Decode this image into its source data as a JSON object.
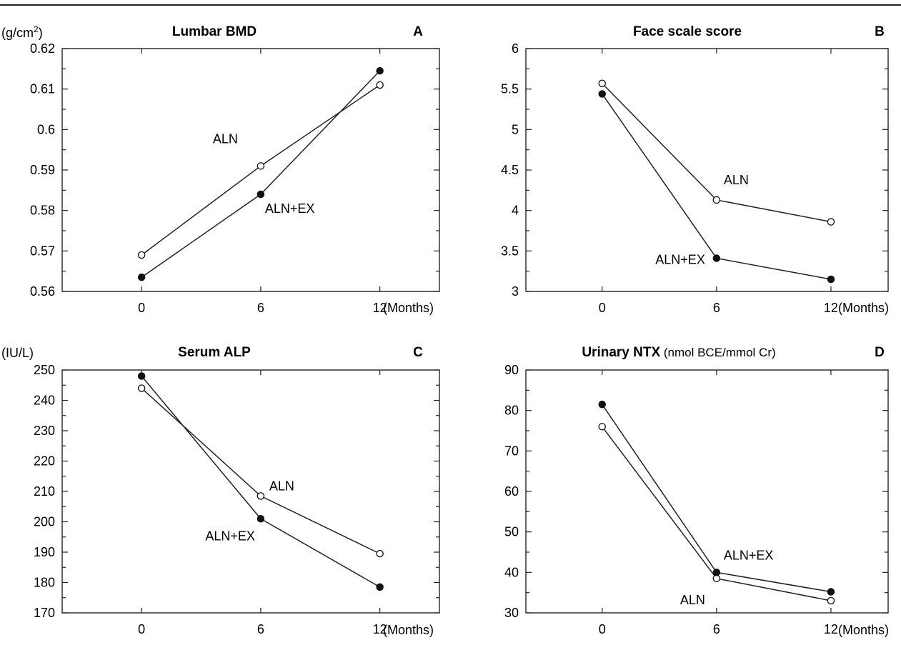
{
  "figure": {
    "panels": [
      {
        "id": "A",
        "letter": "A",
        "title": "Lumbar BMD",
        "title_suffix": "",
        "unit_label": "(g/cm",
        "unit_sup": "2",
        "unit_close": ")",
        "x_unit": "(Months)"
      },
      {
        "id": "B",
        "letter": "B",
        "title": "Face scale score",
        "title_suffix": "",
        "unit_label": "",
        "unit_sup": "",
        "unit_close": "",
        "x_unit": "(Months)"
      },
      {
        "id": "C",
        "letter": "C",
        "title": "Serum ALP",
        "title_suffix": "",
        "unit_label": "(IU/L)",
        "unit_sup": "",
        "unit_close": "",
        "x_unit": "(Months)"
      },
      {
        "id": "D",
        "letter": "D",
        "title": "Urinary NTX",
        "title_suffix": " (nmol BCE/mmol Cr)",
        "unit_label": "",
        "unit_sup": "",
        "unit_close": "",
        "x_unit": "(Months)"
      }
    ]
  },
  "chart_data": [
    {
      "type": "line",
      "title": "Lumbar BMD",
      "ylabel": "g/cm2",
      "xlabel": "(Months)",
      "x": [
        0,
        6,
        12
      ],
      "xlim": [
        -4,
        15
      ],
      "ylim": [
        0.56,
        0.62
      ],
      "yticks": [
        "0.56",
        "0.57",
        "0.58",
        "0.59",
        "0.6",
        "0.61",
        "0.62"
      ],
      "xticks": [
        "0",
        "6",
        "12"
      ],
      "series": [
        {
          "name": "ALN",
          "marker": "open",
          "values": [
            0.569,
            0.591,
            0.611
          ]
        },
        {
          "name": "ALN+EX",
          "marker": "filled",
          "values": [
            0.5635,
            0.584,
            0.6145
          ]
        }
      ],
      "annotations": [
        {
          "text": "ALN",
          "series": "ALN"
        },
        {
          "text": "ALN+EX",
          "series": "ALN+EX"
        }
      ]
    },
    {
      "type": "line",
      "title": "Face scale score",
      "xlabel": "(Months)",
      "x": [
        0,
        6,
        12
      ],
      "xlim": [
        -4,
        15
      ],
      "ylim": [
        3,
        6
      ],
      "yticks": [
        "3",
        "3.5",
        "4",
        "4.5",
        "5",
        "5.5",
        "6"
      ],
      "xticks": [
        "0",
        "6",
        "12"
      ],
      "series": [
        {
          "name": "ALN",
          "marker": "open",
          "values": [
            5.57,
            4.13,
            3.86
          ]
        },
        {
          "name": "ALN+EX",
          "marker": "filled",
          "values": [
            5.44,
            3.41,
            3.15
          ]
        }
      ],
      "annotations": [
        {
          "text": "ALN",
          "series": "ALN"
        },
        {
          "text": "ALN+EX",
          "series": "ALN+EX"
        }
      ]
    },
    {
      "type": "line",
      "title": "Serum ALP",
      "ylabel": "IU/L",
      "xlabel": "(Months)",
      "x": [
        0,
        6,
        12
      ],
      "xlim": [
        -4,
        15
      ],
      "ylim": [
        170,
        250
      ],
      "yticks": [
        "170",
        "180",
        "190",
        "200",
        "210",
        "220",
        "230",
        "240",
        "250"
      ],
      "xticks": [
        "0",
        "6",
        "12"
      ],
      "series": [
        {
          "name": "ALN",
          "marker": "open",
          "values": [
            244,
            208.5,
            189.5
          ]
        },
        {
          "name": "ALN+EX",
          "marker": "filled",
          "values": [
            248,
            201,
            178.5
          ]
        }
      ],
      "annotations": [
        {
          "text": "ALN",
          "series": "ALN"
        },
        {
          "text": "ALN+EX",
          "series": "ALN+EX"
        }
      ]
    },
    {
      "type": "line",
      "title": "Urinary NTX",
      "ylabel": "nmol BCE/mmol Cr",
      "xlabel": "(Months)",
      "x": [
        0,
        6,
        12
      ],
      "xlim": [
        -4,
        15
      ],
      "ylim": [
        30,
        90
      ],
      "yticks": [
        "30",
        "40",
        "50",
        "60",
        "70",
        "80",
        "90"
      ],
      "xticks": [
        "0",
        "6",
        "12"
      ],
      "series": [
        {
          "name": "ALN",
          "marker": "open",
          "values": [
            76,
            38.5,
            33
          ]
        },
        {
          "name": "ALN+EX",
          "marker": "filled",
          "values": [
            81.5,
            40,
            35.2
          ]
        }
      ],
      "annotations": [
        {
          "text": "ALN",
          "series": "ALN"
        },
        {
          "text": "ALN+EX",
          "series": "ALN+EX"
        }
      ]
    }
  ]
}
